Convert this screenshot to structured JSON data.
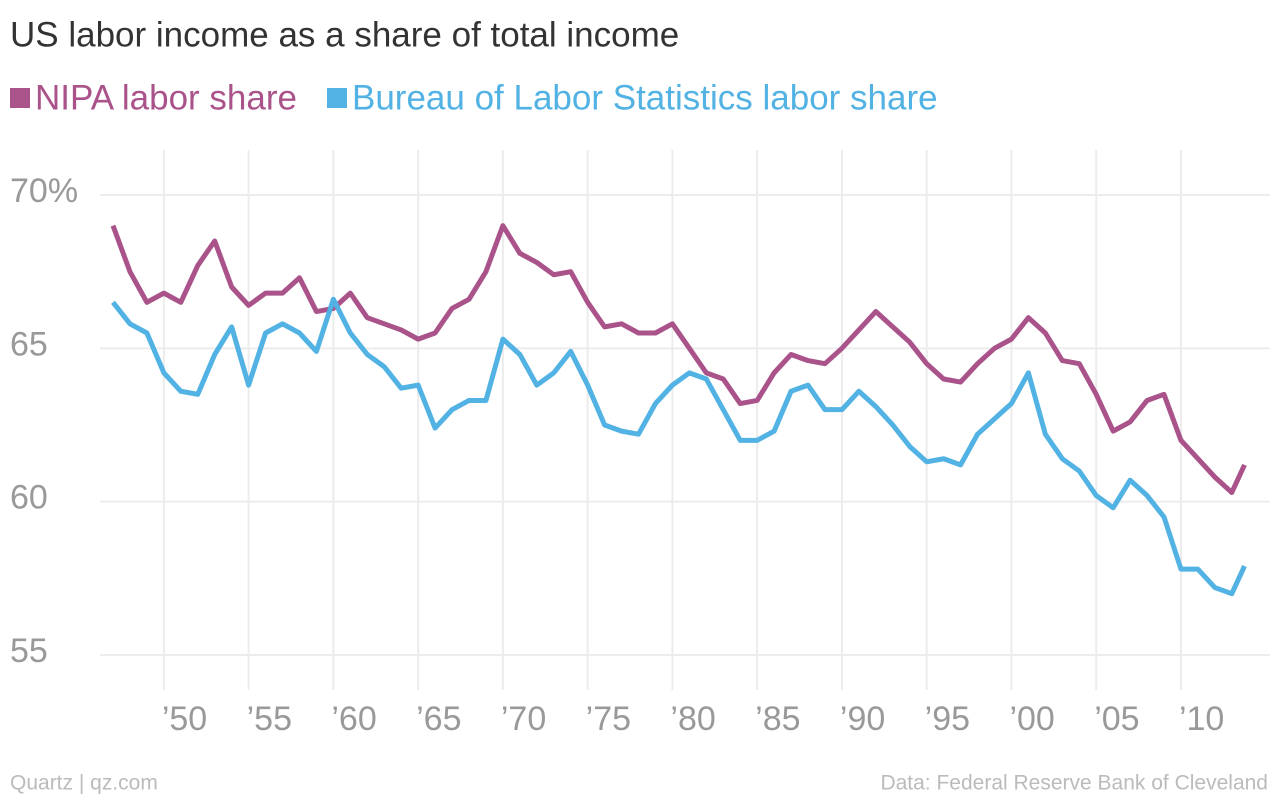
{
  "chart_data": {
    "type": "line",
    "title": "US labor income as a share of total income",
    "source_left": "Quartz | qz.com",
    "source_right": "Data: Federal Reserve Bank of Cleveland",
    "x": [
      1947,
      1948,
      1949,
      1950,
      1951,
      1952,
      1953,
      1954,
      1955,
      1956,
      1957,
      1958,
      1959,
      1960,
      1961,
      1962,
      1963,
      1964,
      1965,
      1966,
      1967,
      1968,
      1969,
      1970,
      1971,
      1972,
      1973,
      1974,
      1975,
      1976,
      1977,
      1978,
      1979,
      1980,
      1981,
      1982,
      1983,
      1984,
      1985,
      1986,
      1987,
      1988,
      1989,
      1990,
      1991,
      1992,
      1993,
      1994,
      1995,
      1996,
      1997,
      1998,
      1999,
      2000,
      2001,
      2002,
      2003,
      2004,
      2005,
      2006,
      2007,
      2008,
      2009,
      2010,
      2011,
      2012,
      2013,
      2013.75
    ],
    "series": [
      {
        "name": "NIPA labor share",
        "color": "#a9538a",
        "values": [
          69.0,
          67.5,
          66.5,
          66.8,
          66.5,
          67.7,
          68.5,
          67.0,
          66.4,
          66.8,
          66.8,
          67.3,
          66.2,
          66.3,
          66.8,
          66.0,
          65.8,
          65.6,
          65.3,
          65.5,
          66.3,
          66.6,
          67.5,
          69.0,
          68.1,
          67.8,
          67.4,
          67.5,
          66.5,
          65.7,
          65.8,
          65.5,
          65.5,
          65.8,
          65.0,
          64.2,
          64.0,
          63.2,
          63.3,
          64.2,
          64.8,
          64.6,
          64.5,
          65.0,
          65.6,
          66.2,
          65.7,
          65.2,
          64.5,
          64.0,
          63.9,
          64.5,
          65.0,
          65.3,
          66.0,
          65.5,
          64.6,
          64.5,
          63.5,
          62.3,
          62.6,
          63.3,
          63.5,
          62.0,
          61.4,
          60.8,
          60.3,
          61.2
        ]
      },
      {
        "name": "Bureau of Labor Statistics labor share",
        "color": "#51b2e3",
        "values": [
          66.5,
          65.8,
          65.5,
          64.2,
          63.6,
          63.5,
          64.8,
          65.7,
          63.8,
          65.5,
          65.8,
          65.5,
          64.9,
          66.6,
          65.5,
          64.8,
          64.4,
          63.7,
          63.8,
          62.4,
          63.0,
          63.3,
          63.3,
          65.3,
          64.8,
          63.8,
          64.2,
          64.9,
          63.8,
          62.5,
          62.3,
          62.2,
          63.2,
          63.8,
          64.2,
          64.0,
          63.0,
          62.0,
          62.0,
          62.3,
          63.6,
          63.8,
          63.0,
          63.0,
          63.6,
          63.1,
          62.5,
          61.8,
          61.3,
          61.4,
          61.2,
          62.2,
          62.7,
          63.2,
          64.2,
          62.2,
          61.4,
          61.0,
          60.2,
          59.8,
          60.7,
          60.2,
          59.5,
          57.8,
          57.8,
          57.2,
          57.0,
          57.9
        ]
      }
    ],
    "xlim": [
      1947,
      2014.25
    ],
    "ylim": [
      54,
      71
    ],
    "yticks": [
      55,
      60,
      65,
      {
        "value": 70,
        "label": "70%"
      }
    ],
    "xticks": [
      {
        "value": 1950,
        "label": "’50"
      },
      {
        "value": 1955,
        "label": "’55"
      },
      {
        "value": 1960,
        "label": "’60"
      },
      {
        "value": 1965,
        "label": "’65"
      },
      {
        "value": 1970,
        "label": "’70"
      },
      {
        "value": 1975,
        "label": "’75"
      },
      {
        "value": 1980,
        "label": "’80"
      },
      {
        "value": 1985,
        "label": "’85"
      },
      {
        "value": 1990,
        "label": "’90"
      },
      {
        "value": 1995,
        "label": "’95"
      },
      {
        "value": 2000,
        "label": "’00"
      },
      {
        "value": 2005,
        "label": "’05"
      },
      {
        "value": 2010,
        "label": "’10"
      }
    ],
    "grid": true
  }
}
